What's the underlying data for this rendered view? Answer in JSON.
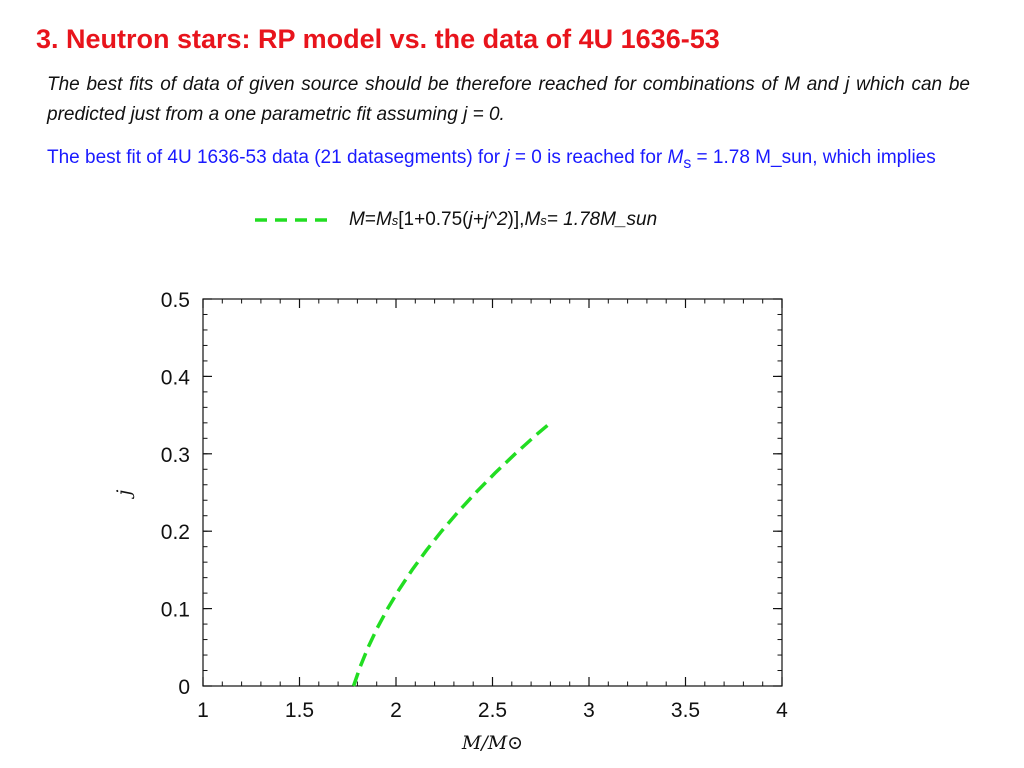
{
  "slide": {
    "title": "3. Neutron stars: RP model vs. the data of 4U 1636-53",
    "para1": "The best fits of data of given source should be therefore reached for combinations of M and j which can be predicted just from a one parametric fit assuming j = 0.",
    "para2": {
      "t1": "The best fit of 4U 1636-53 data (21 datasegments) for ",
      "j": "j",
      "t2": " = 0 is reached for ",
      "M": "M",
      "s": "s",
      "t3": " = 1.78 M_sun, which implies"
    },
    "legend": {
      "p1": "M",
      "p2": "= ",
      "p3": "M",
      "p4": "s",
      "p5": "[1+0.75(",
      "p6": "j+j^2",
      "p7": ")],  ",
      "p8": "M",
      "p9": "s",
      "p10": " = 1.78M_sun"
    }
  },
  "colors": {
    "title": "#e8141c",
    "para2": "#1a1aff",
    "curve": "#22dd22"
  },
  "chart_data": {
    "type": "line",
    "xlabel": "M/M⊙",
    "ylabel": "j",
    "xlim": [
      1,
      4
    ],
    "ylim": [
      0,
      0.5
    ],
    "xticks": [
      "1",
      "1.5",
      "2",
      "2.5",
      "3",
      "3.5",
      "4"
    ],
    "yticks": [
      "0",
      "0.1",
      "0.2",
      "0.3",
      "0.4",
      "0.5"
    ],
    "grid": false,
    "series": [
      {
        "style": "dashed",
        "color": "#22dd22",
        "x": [
          1.78,
          1.8146,
          1.8556,
          1.903,
          1.9568,
          2.017,
          2.0836,
          2.1566,
          2.236,
          2.3218,
          2.414,
          2.5126,
          2.6176,
          2.729,
          2.7876
        ],
        "y": [
          0,
          0.025,
          0.05,
          0.075,
          0.1,
          0.125,
          0.15,
          0.175,
          0.2,
          0.225,
          0.25,
          0.275,
          0.3,
          0.325,
          0.3373
        ]
      }
    ]
  }
}
